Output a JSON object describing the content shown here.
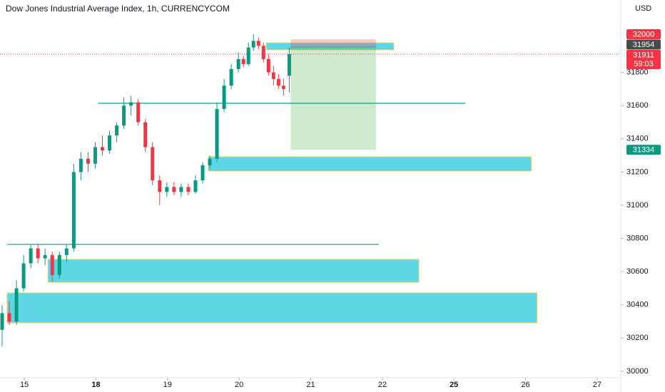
{
  "chart_data": {
    "type": "candlestick",
    "title": "Dow Jones Industrial Average Index, 1h, CURRENCYCOM",
    "currency": "USD",
    "up_color": "#089981",
    "down_color": "#f23645",
    "xlim": [
      -0.34,
      8.33
    ],
    "ylim": [
      29961,
      32236
    ],
    "xticks": [
      {
        "value": 0,
        "label": "15",
        "bold": false
      },
      {
        "value": 1,
        "label": "18",
        "bold": true
      },
      {
        "value": 2,
        "label": "19",
        "bold": false
      },
      {
        "value": 3,
        "label": "20",
        "bold": false
      },
      {
        "value": 4,
        "label": "21",
        "bold": false
      },
      {
        "value": 5,
        "label": "22",
        "bold": false
      },
      {
        "value": 6,
        "label": "25",
        "bold": true
      },
      {
        "value": 7,
        "label": "26",
        "bold": false
      },
      {
        "value": 8,
        "label": "27",
        "bold": false
      }
    ],
    "yticks": [
      30000,
      30200,
      30400,
      30600,
      30800,
      31000,
      31200,
      31400,
      31600,
      31800
    ],
    "x": [
      -0.31,
      -0.21,
      -0.11,
      -0.01,
      0.09,
      0.19,
      0.29,
      0.39,
      0.49,
      0.59,
      0.69,
      0.79,
      0.89,
      0.99,
      1.09,
      1.19,
      1.29,
      1.39,
      1.49,
      1.59,
      1.69,
      1.79,
      1.89,
      1.99,
      2.09,
      2.19,
      2.29,
      2.39,
      2.49,
      2.59,
      2.69,
      2.79,
      2.89,
      2.99,
      3.06,
      3.13,
      3.2,
      3.27,
      3.34,
      3.41,
      3.48,
      3.55,
      3.62,
      3.7
    ],
    "open": [
      30250,
      30350,
      30300,
      30500,
      30650,
      30740,
      30680,
      30700,
      30580,
      30700,
      30740,
      31200,
      31280,
      31250,
      31350,
      31330,
      31420,
      31480,
      31600,
      31620,
      31500,
      31350,
      31150,
      31080,
      31110,
      31080,
      31110,
      31080,
      31150,
      31240,
      31280,
      31580,
      31720,
      31820,
      31880,
      31850,
      31950,
      31990,
      31960,
      31880,
      31800,
      31760,
      31720,
      31780
    ],
    "high": [
      30400,
      30420,
      30550,
      30700,
      30760,
      30770,
      30740,
      30720,
      30720,
      30760,
      31250,
      31320,
      31320,
      31380,
      31420,
      31450,
      31500,
      31650,
      31660,
      31640,
      31520,
      31380,
      31180,
      31140,
      31140,
      31130,
      31130,
      31180,
      31260,
      31300,
      31620,
      31760,
      31850,
      31920,
      31900,
      31980,
      32030,
      32010,
      31980,
      31910,
      31840,
      31790,
      31760,
      31950
    ],
    "low": [
      30150,
      30280,
      30280,
      30480,
      30620,
      30650,
      30640,
      30540,
      30560,
      30660,
      30720,
      31150,
      31200,
      31220,
      31300,
      31310,
      31380,
      31460,
      31540,
      31480,
      31320,
      31120,
      31000,
      31050,
      31060,
      31050,
      31060,
      31070,
      31130,
      31220,
      31260,
      31560,
      31700,
      31800,
      31830,
      31840,
      31930,
      31940,
      31860,
      31780,
      31720,
      31700,
      31660,
      31680
    ],
    "close": [
      30350,
      30300,
      30500,
      30650,
      30740,
      30680,
      30700,
      30580,
      30700,
      30740,
      31200,
      31280,
      31250,
      31350,
      31330,
      31420,
      31480,
      31600,
      31620,
      31500,
      31350,
      31150,
      31080,
      31110,
      31080,
      31110,
      31080,
      31150,
      31240,
      31280,
      31580,
      31720,
      31820,
      31880,
      31850,
      31950,
      31990,
      31960,
      31880,
      31800,
      31760,
      31720,
      31700,
      31911
    ],
    "zones": [
      {
        "x": [
          -0.24,
          7.16
        ],
        "y": [
          30292,
          30472
        ]
      },
      {
        "x": [
          0.33,
          5.51
        ],
        "y": [
          30536,
          30674
        ]
      },
      {
        "x": [
          2.57,
          7.08
        ],
        "y": [
          31206,
          31292
        ]
      },
      {
        "x": [
          3.38,
          5.16
        ],
        "y": [
          31936,
          31978
        ]
      }
    ],
    "levels": [
      {
        "x": [
          -0.24,
          4.95
        ],
        "y": 30764
      },
      {
        "x": [
          1.03,
          6.16
        ],
        "y": 31614
      }
    ],
    "position": {
      "x": [
        3.72,
        4.91
      ],
      "stop": 32000,
      "entry": 31954,
      "target": 31334
    },
    "last_price": 31911,
    "countdown": "59:03"
  }
}
